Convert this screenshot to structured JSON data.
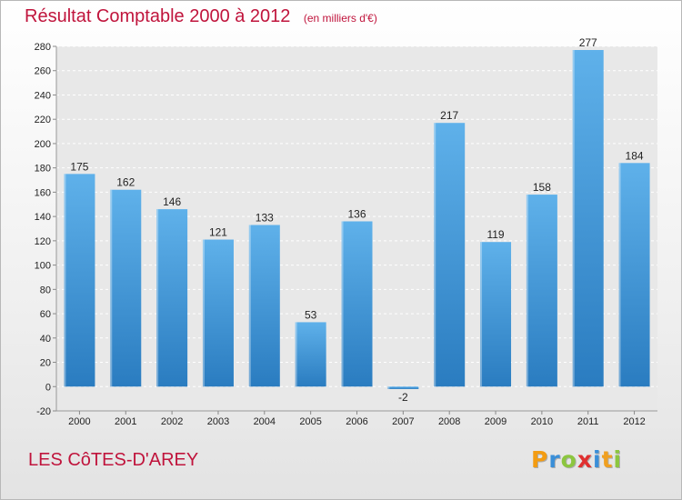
{
  "header": {
    "title": "Résultat Comptable 2000 à 2012",
    "unit": "(en milliers d'€)"
  },
  "footer": {
    "place": "LES CôTES-D'AREY",
    "logo_letters": [
      "P",
      "r",
      "o",
      "x",
      "i",
      "t",
      "i"
    ],
    "logo_colors": [
      "#f39c12",
      "#3a8fd8",
      "#8cc63f",
      "#e03030",
      "#3a8fd8",
      "#f0a020",
      "#8cc63f"
    ]
  },
  "chart_data": {
    "type": "bar",
    "title": "Résultat Comptable 2000 à 2012",
    "categories": [
      "2000",
      "2001",
      "2002",
      "2003",
      "2004",
      "2005",
      "2006",
      "2007",
      "2008",
      "2009",
      "2010",
      "2011",
      "2012"
    ],
    "values": [
      175,
      162,
      146,
      121,
      133,
      53,
      136,
      -2,
      217,
      119,
      158,
      277,
      184
    ],
    "data_labels": [
      "175",
      "162",
      "146",
      "121",
      "133",
      "53",
      "136",
      "-2",
      "217",
      "119",
      "158",
      "277",
      "184"
    ],
    "ylim": [
      -20,
      280
    ],
    "yticks": [
      -20,
      0,
      20,
      40,
      60,
      80,
      100,
      120,
      140,
      160,
      180,
      200,
      220,
      240,
      260,
      280
    ],
    "ytick_labels": [
      "-20",
      "0",
      "20",
      "40",
      "60",
      "80",
      "100",
      "120",
      "140",
      "160",
      "180",
      "200",
      "220",
      "240",
      "260",
      "280"
    ],
    "grid": true,
    "bar_color_top": "#5fb1ea",
    "bar_color_bottom": "#2a7cc0",
    "plot_background": "#e8e8e8"
  }
}
